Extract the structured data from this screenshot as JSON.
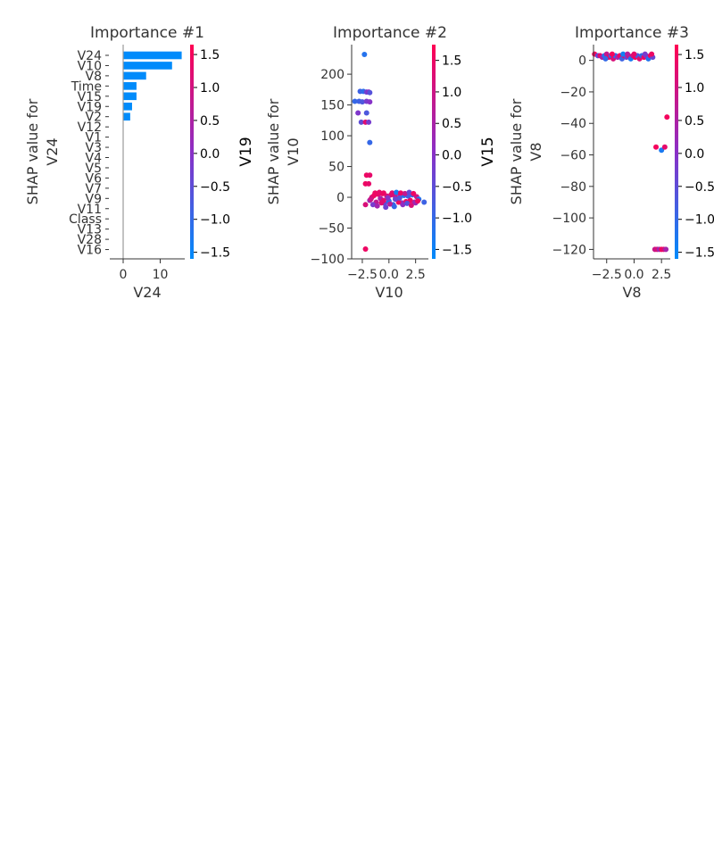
{
  "colors": {
    "bar": "#008bfb",
    "cmap_low": "#008bfb",
    "cmap_mid": "#8b2fc6",
    "cmap_high": "#ff0052",
    "axis": "#333333"
  },
  "chart_data": [
    {
      "type": "bar",
      "orientation": "horizontal",
      "title": "Importance #1",
      "xlabel": "V24",
      "ylabel_lines": [
        "SHAP value for",
        "V24"
      ],
      "categories": [
        "V24",
        "V10",
        "V8",
        "Time",
        "V15",
        "V19",
        "V2",
        "V12",
        "V1",
        "V3",
        "V4",
        "V5",
        "V6",
        "V7",
        "V9",
        "V11",
        "Class",
        "V13",
        "V28",
        "V16"
      ],
      "values": [
        15.8,
        13.2,
        6.2,
        3.6,
        3.6,
        2.4,
        1.9,
        0,
        0,
        0,
        0,
        0,
        0,
        0,
        0,
        0,
        0,
        0,
        0,
        0
      ],
      "xlim": [
        -3.5,
        17
      ],
      "xticks": [
        0,
        10
      ],
      "colorbar": {
        "label": "V19",
        "ticks": [
          1.5,
          1.0,
          0.5,
          0.0,
          -0.5,
          -1.0,
          -1.5
        ],
        "tick_labels": [
          "1.5",
          "1.0",
          "0.5",
          "0.0",
          "−0.5",
          "−1.0",
          "−1.5"
        ],
        "range": [
          -1.6,
          1.65
        ]
      }
    },
    {
      "type": "scatter",
      "title": "Importance #2",
      "xlabel": "V10",
      "ylabel_lines": [
        "SHAP value for",
        "V10"
      ],
      "xlim": [
        -3.5,
        3.7
      ],
      "ylim": [
        -100,
        248
      ],
      "xticks": [
        -2.5,
        0.0,
        2.5
      ],
      "xtick_labels": [
        "−2.5",
        "0.0",
        "2.5"
      ],
      "yticks": [
        200,
        150,
        100,
        50,
        0,
        -50,
        -100
      ],
      "ytick_labels": [
        "200",
        "150",
        "100",
        "50",
        "0",
        "−50",
        "−100"
      ],
      "colorbar": {
        "label": "V15",
        "ticks": [
          1.5,
          1.0,
          0.5,
          0.0,
          -0.5,
          -1.0,
          -1.5
        ],
        "tick_labels": [
          "1.5",
          "1.0",
          "0.5",
          "0.0",
          "−0.5",
          "−1.0",
          "−1.5"
        ],
        "range": [
          -1.65,
          1.75
        ]
      },
      "points": [
        [
          -2.3,
          232,
          -1.2
        ],
        [
          -2.7,
          172,
          -0.9
        ],
        [
          -2.4,
          172,
          -1.1
        ],
        [
          -2.1,
          171,
          -0.3
        ],
        [
          -1.9,
          171,
          0.1
        ],
        [
          -1.8,
          170,
          -0.6
        ],
        [
          -3.2,
          156,
          -1.0
        ],
        [
          -2.8,
          156,
          -0.9
        ],
        [
          -2.5,
          155,
          -0.7
        ],
        [
          -2.1,
          156,
          -0.2
        ],
        [
          -1.8,
          155,
          0.0
        ],
        [
          -2.9,
          137,
          -0.1
        ],
        [
          -2.1,
          137,
          -0.7
        ],
        [
          -2.6,
          122,
          -0.5
        ],
        [
          -2.2,
          122,
          1.3
        ],
        [
          -1.9,
          122,
          -0.2
        ],
        [
          -1.8,
          89,
          -1.0
        ],
        [
          -2.1,
          36,
          1.5
        ],
        [
          -1.8,
          36,
          1.4
        ],
        [
          -2.2,
          22,
          1.5
        ],
        [
          -1.9,
          22,
          1.4
        ],
        [
          -2.2,
          -84,
          1.5
        ],
        [
          -2.2,
          -12,
          1.2
        ],
        [
          -1.8,
          -5,
          0.3
        ],
        [
          -1.6,
          0,
          1.2
        ],
        [
          -1.4,
          3,
          1.5
        ],
        [
          -1.2,
          -8,
          0.8
        ],
        [
          -1.0,
          5,
          1.4
        ],
        [
          -0.8,
          -2,
          0.5
        ],
        [
          -0.6,
          6,
          1.5
        ],
        [
          -0.4,
          -10,
          -0.5
        ],
        [
          -0.2,
          2,
          1.1
        ],
        [
          0.0,
          -6,
          -1.1
        ],
        [
          0.2,
          4,
          1.3
        ],
        [
          0.4,
          -12,
          -0.9
        ],
        [
          0.6,
          1,
          0.9
        ],
        [
          0.8,
          -4,
          -1.2
        ],
        [
          1.0,
          6,
          1.2
        ],
        [
          1.2,
          -9,
          0.2
        ],
        [
          1.4,
          3,
          -1.3
        ],
        [
          1.6,
          -7,
          1.4
        ],
        [
          1.8,
          2,
          -0.8
        ],
        [
          2.0,
          -5,
          1.5
        ],
        [
          2.2,
          4,
          -1.0
        ],
        [
          2.4,
          -8,
          0.6
        ],
        [
          2.6,
          1,
          1.0
        ],
        [
          2.8,
          -3,
          -1.2
        ],
        [
          -1.5,
          -12,
          -0.2
        ],
        [
          -1.1,
          -14,
          0.4
        ],
        [
          -0.7,
          -9,
          1.3
        ],
        [
          -0.3,
          -16,
          -0.3
        ],
        [
          0.1,
          -11,
          0.7
        ],
        [
          0.5,
          -15,
          -1.0
        ],
        [
          0.9,
          -8,
          1.5
        ],
        [
          1.3,
          -12,
          0.1
        ],
        [
          1.7,
          -10,
          -0.6
        ],
        [
          2.1,
          -13,
          1.2
        ],
        [
          2.5,
          -9,
          0.3
        ],
        [
          -1.3,
          7,
          1.5
        ],
        [
          -0.9,
          8,
          1.4
        ],
        [
          -0.5,
          7,
          1.5
        ],
        [
          0.3,
          7,
          1.3
        ],
        [
          0.7,
          8,
          -1.4
        ],
        [
          1.1,
          7,
          1.5
        ],
        [
          1.5,
          6,
          0.9
        ],
        [
          1.9,
          8,
          -0.4
        ],
        [
          2.3,
          6,
          1.5
        ],
        [
          3.3,
          -8,
          -0.9
        ],
        [
          -1.7,
          -3,
          1.0
        ],
        [
          -0.1,
          -1,
          0.0
        ],
        [
          1.0,
          -1,
          -0.6
        ],
        [
          2.7,
          -6,
          1.5
        ],
        [
          -0.5,
          -5,
          1.3
        ],
        [
          0.6,
          -3,
          -0.4
        ]
      ]
    },
    {
      "type": "scatter",
      "title": "Importance #3",
      "xlabel": "V8",
      "ylabel_lines": [
        "SHAP value for",
        "V8"
      ],
      "xlim": [
        -3.7,
        3.3
      ],
      "ylim": [
        -126,
        10
      ],
      "xticks": [
        -2.5,
        0.0,
        2.5
      ],
      "xtick_labels": [
        "−2.5",
        "0.0",
        "2.5"
      ],
      "yticks": [
        0,
        -20,
        -40,
        -60,
        -80,
        -100,
        -120
      ],
      "ytick_labels": [
        "0",
        "−20",
        "−40",
        "−60",
        "−80",
        "−100",
        "−120"
      ],
      "colorbar": {
        "label": "",
        "ticks": [
          1.5,
          1.0,
          0.5,
          0.0,
          -0.5,
          -1.0,
          -1.5
        ],
        "tick_labels": [
          "1.5",
          "1.0",
          "0.5",
          "0.0",
          "−0.5",
          "−1.0",
          "−1.5"
        ],
        "range": [
          -1.6,
          1.65
        ]
      },
      "points": [
        [
          -3.6,
          4,
          1.5
        ],
        [
          -3.3,
          3,
          -0.5
        ],
        [
          -3.1,
          3,
          1.3
        ],
        [
          -2.9,
          2,
          0.5
        ],
        [
          -2.7,
          3,
          -1.2
        ],
        [
          -2.5,
          4,
          0.8
        ],
        [
          -2.3,
          2,
          1.5
        ],
        [
          -2.1,
          3,
          -0.8
        ],
        [
          -1.9,
          1,
          1.1
        ],
        [
          -1.7,
          3,
          -1.1
        ],
        [
          -1.5,
          2,
          0.3
        ],
        [
          -1.3,
          3,
          1.4
        ],
        [
          -1.1,
          1,
          -0.9
        ],
        [
          -0.9,
          3,
          1.5
        ],
        [
          -0.7,
          2,
          -0.3
        ],
        [
          -0.5,
          3,
          1.0
        ],
        [
          -0.3,
          1,
          -1.3
        ],
        [
          -0.1,
          3,
          0.9
        ],
        [
          0.1,
          2,
          1.5
        ],
        [
          0.3,
          3,
          -0.7
        ],
        [
          0.5,
          1,
          1.2
        ],
        [
          0.7,
          3,
          -1.0
        ],
        [
          0.9,
          2,
          1.4
        ],
        [
          1.1,
          3,
          0.1
        ],
        [
          1.3,
          1,
          -1.2
        ],
        [
          1.5,
          3,
          1.5
        ],
        [
          1.7,
          2,
          -0.4
        ],
        [
          -2.0,
          4,
          1.5
        ],
        [
          -1.0,
          4,
          -1.4
        ],
        [
          0.0,
          4,
          1.3
        ],
        [
          1.0,
          4,
          -0.2
        ],
        [
          1.6,
          4,
          1.4
        ],
        [
          -2.6,
          1,
          -1.0
        ],
        [
          -0.6,
          4,
          0.6
        ],
        [
          3.0,
          -36,
          1.5
        ],
        [
          2.0,
          -55,
          1.5
        ],
        [
          2.5,
          -57,
          -1.3
        ],
        [
          2.8,
          -55,
          1.3
        ],
        [
          1.9,
          -120,
          0.9
        ],
        [
          2.1,
          -120,
          1.1
        ],
        [
          2.3,
          -120,
          0.3
        ],
        [
          2.5,
          -120,
          1.5
        ],
        [
          2.7,
          -120,
          1.2
        ],
        [
          2.9,
          -120,
          0.4
        ]
      ]
    }
  ]
}
